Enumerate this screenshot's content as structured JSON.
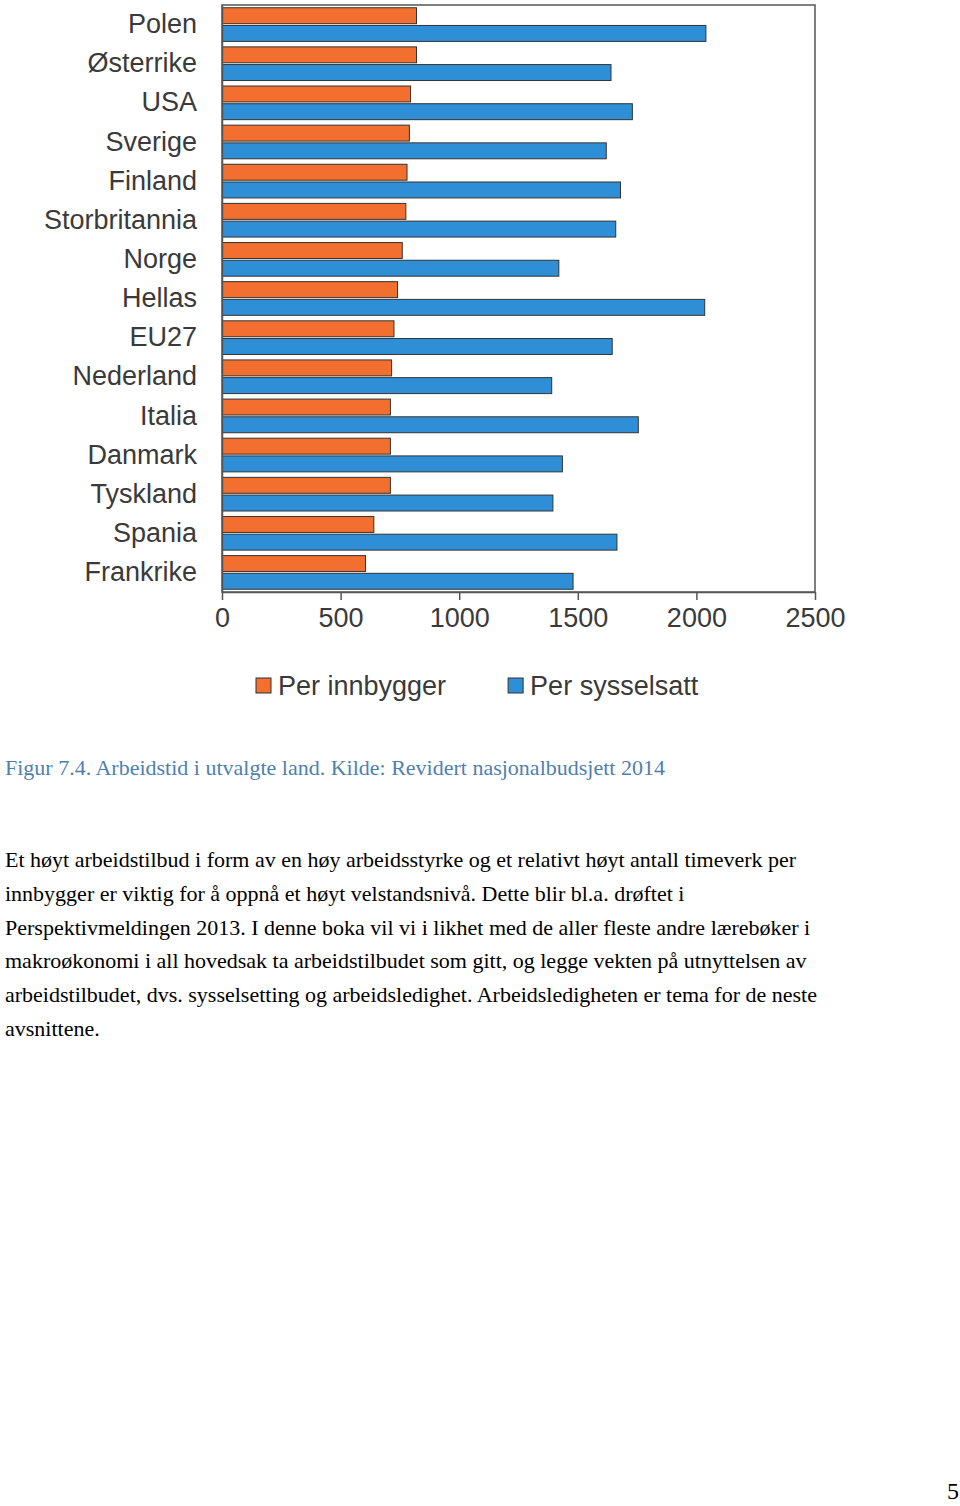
{
  "chart_data": {
    "type": "bar",
    "orientation": "horizontal",
    "categories": [
      "Polen",
      "Østerrike",
      "USA",
      "Sverige",
      "Finland",
      "Storbritannia",
      "Norge",
      "Hellas",
      "EU27",
      "Nederland",
      "Italia",
      "Danmark",
      "Tyskland",
      "Spania",
      "Frankrike"
    ],
    "series": [
      {
        "name": "Per innbygger",
        "color": "#f36f30",
        "values": [
          820,
          820,
          795,
          790,
          780,
          775,
          760,
          740,
          725,
          715,
          710,
          710,
          710,
          640,
          605
        ]
      },
      {
        "name": "Per sysselsatt",
        "color": "#2f8fd6",
        "values": [
          2040,
          1640,
          1730,
          1620,
          1680,
          1660,
          1420,
          2035,
          1645,
          1390,
          1755,
          1435,
          1395,
          1665,
          1480
        ]
      }
    ],
    "xlim": [
      0,
      2500
    ],
    "xticks": [
      0,
      500,
      1000,
      1500,
      2000,
      2500
    ],
    "grid": false,
    "legend": "bottom"
  },
  "caption": "Figur 7.4. Arbeidstid i utvalgte land. Kilde: Revidert nasjonalbudsjett 2014",
  "paragraph_lines": [
    "Et høyt arbeidstilbud i form av en høy arbeidsstyrke og et relativt høyt antall timeverk per",
    "innbygger er viktig for å oppnå et høyt velstandsnivå. Dette blir bl.a. drøftet i",
    "Perspektivmeldingen 2013. I denne boka vil vi i likhet med de aller fleste andre lærebøker i",
    "makroøkonomi i all hovedsak ta arbeidstilbudet som gitt, og legge vekten på utnyttelsen av",
    "arbeidstilbudet, dvs. sysselsetting og arbeidsledighet. Arbeidsledigheten er tema for de neste",
    "avsnittene."
  ],
  "page_number": 5
}
